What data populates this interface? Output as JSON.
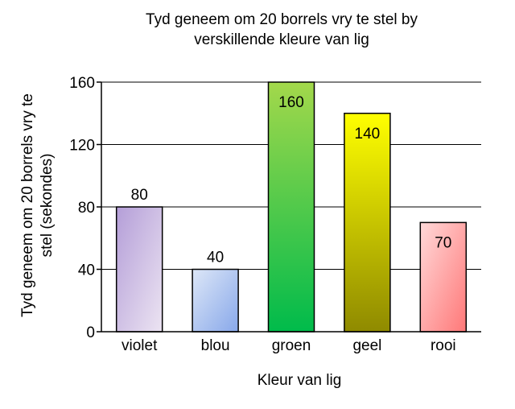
{
  "chart_data": {
    "type": "bar",
    "title_lines": [
      "Tyd geneem om 20 borrels vry te stel by",
      "verskillende kleure van lig"
    ],
    "xlabel": "Kleur van lig",
    "ylabel_lines": [
      "Tyd geneem om 20 borrels vry te",
      "stel (sekondes)"
    ],
    "categories": [
      "violet",
      "blou",
      "groen",
      "geel",
      "rooi"
    ],
    "values": [
      80,
      40,
      160,
      140,
      70
    ],
    "value_labels": [
      "80",
      "40",
      "160",
      "140",
      "70"
    ],
    "ylim": [
      0,
      160
    ],
    "yticks": [
      0,
      40,
      80,
      120,
      160
    ],
    "ytick_labels": [
      "0",
      "40",
      "80",
      "120",
      "160"
    ],
    "grid": true,
    "label_position": [
      "above",
      "above",
      "inside",
      "inside",
      "inside"
    ],
    "bar_gradients": [
      [
        "#b49ed8",
        "#ece4f2"
      ],
      [
        "#dde7f7",
        "#88a8ea"
      ],
      [
        "#a3d84b",
        "#00bb4b"
      ],
      [
        "#ffff00",
        "#8f8a00"
      ],
      [
        "#ffd9d9",
        "#ff7878"
      ]
    ],
    "gradient_direction": [
      "tl-br",
      "tl-br",
      "vertical",
      "vertical",
      "tl-br"
    ]
  }
}
